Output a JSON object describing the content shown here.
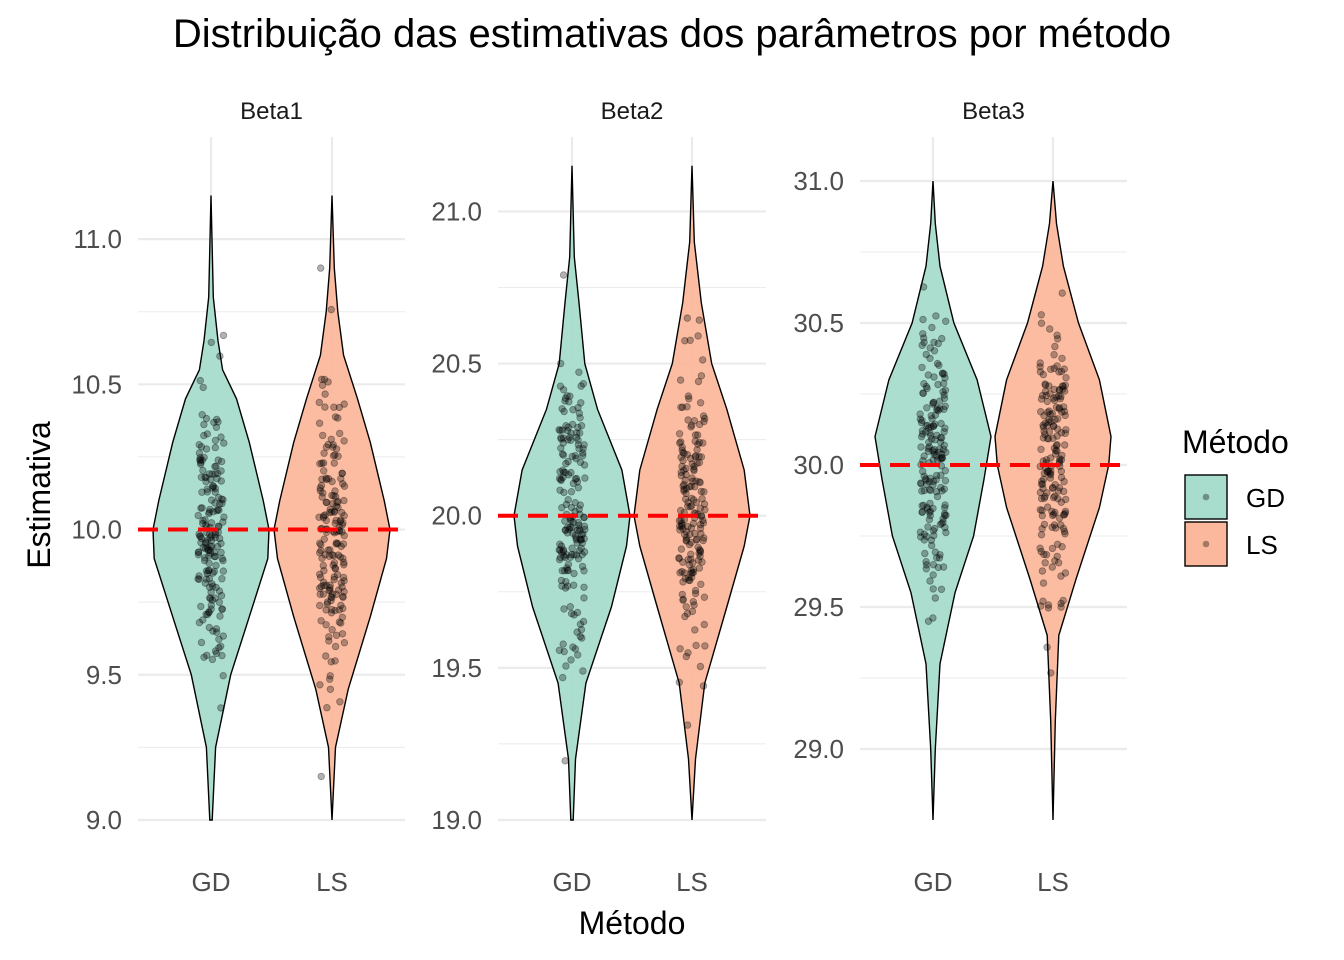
{
  "chart_data": {
    "type": "violin",
    "title": "Distribuição das estimativas dos parâmetros por método",
    "xlabel": "Método",
    "ylabel": "Estimativa",
    "legend": {
      "title": "Método",
      "position": "right",
      "entries": [
        {
          "name": "GD",
          "color": "#a8dccd"
        },
        {
          "name": "LS",
          "color": "#fbb89c"
        }
      ]
    },
    "reference_line_color": "#ff0000",
    "grid": true,
    "categories": [
      "GD",
      "LS"
    ],
    "panels": [
      {
        "name": "Beta1",
        "true_value": 10.0,
        "ylim": [
          9.0,
          11.2
        ],
        "yticks": [
          9.0,
          9.5,
          10.0,
          10.5,
          11.0
        ],
        "ytick_labels": [
          "9.0",
          "9.5",
          "10.0",
          "10.5",
          "11.0"
        ],
        "series": [
          {
            "name": "GD",
            "min": 9.0,
            "max": 11.15,
            "density": [
              [
                9.0,
                0.01
              ],
              [
                9.25,
                0.04
              ],
              [
                9.5,
                0.17
              ],
              [
                9.7,
                0.33
              ],
              [
                9.9,
                0.49
              ],
              [
                10.0,
                0.5
              ],
              [
                10.1,
                0.45
              ],
              [
                10.3,
                0.33
              ],
              [
                10.45,
                0.22
              ],
              [
                10.55,
                0.1
              ],
              [
                10.65,
                0.06
              ],
              [
                10.8,
                0.02
              ],
              [
                11.15,
                0.0
              ]
            ]
          },
          {
            "name": "LS",
            "min": 9.0,
            "max": 11.15,
            "density": [
              [
                9.0,
                0.0
              ],
              [
                9.25,
                0.03
              ],
              [
                9.45,
                0.14
              ],
              [
                9.7,
                0.33
              ],
              [
                9.9,
                0.47
              ],
              [
                10.0,
                0.5
              ],
              [
                10.1,
                0.45
              ],
              [
                10.3,
                0.33
              ],
              [
                10.45,
                0.22
              ],
              [
                10.6,
                0.1
              ],
              [
                10.75,
                0.05
              ],
              [
                10.9,
                0.02
              ],
              [
                11.15,
                0.0
              ]
            ]
          }
        ]
      },
      {
        "name": "Beta2",
        "true_value": 20.0,
        "ylim": [
          19.0,
          21.1
        ],
        "yticks": [
          19.0,
          19.5,
          20.0,
          20.5,
          21.0
        ],
        "ytick_labels": [
          "19.0",
          "19.5",
          "20.0",
          "20.5",
          "21.0"
        ],
        "series": [
          {
            "name": "GD",
            "min": 19.0,
            "max": 21.15,
            "density": [
              [
                19.0,
                0.01
              ],
              [
                19.2,
                0.03
              ],
              [
                19.45,
                0.12
              ],
              [
                19.7,
                0.34
              ],
              [
                19.9,
                0.47
              ],
              [
                20.0,
                0.5
              ],
              [
                20.15,
                0.43
              ],
              [
                20.35,
                0.22
              ],
              [
                20.5,
                0.11
              ],
              [
                20.7,
                0.06
              ],
              [
                20.85,
                0.02
              ],
              [
                21.15,
                0.0
              ]
            ]
          },
          {
            "name": "LS",
            "min": 19.0,
            "max": 21.15,
            "density": [
              [
                19.0,
                0.0
              ],
              [
                19.2,
                0.03
              ],
              [
                19.45,
                0.11
              ],
              [
                19.7,
                0.3
              ],
              [
                19.9,
                0.45
              ],
              [
                20.0,
                0.5
              ],
              [
                20.15,
                0.45
              ],
              [
                20.35,
                0.3
              ],
              [
                20.5,
                0.17
              ],
              [
                20.7,
                0.08
              ],
              [
                20.9,
                0.02
              ],
              [
                21.15,
                0.0
              ]
            ]
          }
        ]
      },
      {
        "name": "Beta3",
        "true_value": 30.0,
        "ylim": [
          28.75,
          31.0
        ],
        "yticks": [
          29.0,
          29.5,
          30.0,
          30.5,
          31.0
        ],
        "ytick_labels": [
          "29.0",
          "29.5",
          "30.0",
          "30.5",
          "31.0"
        ],
        "series": [
          {
            "name": "GD",
            "min": 28.75,
            "max": 31.0,
            "density": [
              [
                28.75,
                0.0
              ],
              [
                29.0,
                0.02
              ],
              [
                29.3,
                0.06
              ],
              [
                29.55,
                0.19
              ],
              [
                29.75,
                0.35
              ],
              [
                29.95,
                0.44
              ],
              [
                30.1,
                0.5
              ],
              [
                30.3,
                0.38
              ],
              [
                30.5,
                0.18
              ],
              [
                30.7,
                0.06
              ],
              [
                30.85,
                0.02
              ],
              [
                31.0,
                0.0
              ]
            ]
          },
          {
            "name": "LS",
            "min": 28.75,
            "max": 31.0,
            "density": [
              [
                28.75,
                0.0
              ],
              [
                29.1,
                0.02
              ],
              [
                29.4,
                0.05
              ],
              [
                29.6,
                0.2
              ],
              [
                29.85,
                0.4
              ],
              [
                30.0,
                0.48
              ],
              [
                30.1,
                0.5
              ],
              [
                30.3,
                0.4
              ],
              [
                30.5,
                0.22
              ],
              [
                30.7,
                0.09
              ],
              [
                30.85,
                0.03
              ],
              [
                31.0,
                0.0
              ]
            ]
          }
        ]
      }
    ]
  }
}
